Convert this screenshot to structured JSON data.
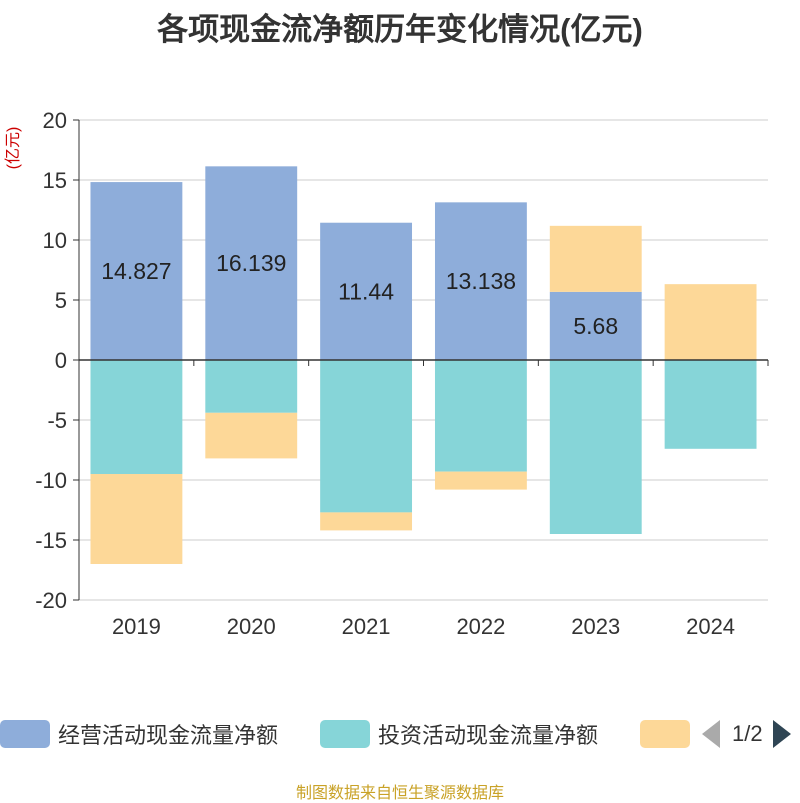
{
  "colors": {
    "operating": "#8eadda",
    "investing": "#86d5d8",
    "financing": "#fdd898",
    "axis": "#333333",
    "grid": "#cccccc",
    "unit": "#cc0000",
    "pager_active": "#2f4554",
    "pager_inactive": "#aaaaaa",
    "source": "#c9a227"
  },
  "legend": {
    "items": [
      {
        "label": "经营活动现金流量净额"
      },
      {
        "label": "投资活动现金流量净额"
      },
      {
        "label": ""
      }
    ],
    "pager_text": "1/2"
  },
  "source_note": "制图数据来自恒生聚源数据库",
  "chart_data": {
    "type": "bar",
    "stacked": true,
    "title": "各项现金流净额历年变化情况(亿元)",
    "ylabel": "(亿元)",
    "xlabel": "",
    "categories": [
      "2019",
      "2020",
      "2021",
      "2022",
      "2023",
      "2024"
    ],
    "ylim": [
      -20,
      20
    ],
    "yticks": [
      20,
      15,
      10,
      5,
      0,
      -5,
      -10,
      -15,
      -20
    ],
    "grid": true,
    "legend_position": "bottom",
    "series": [
      {
        "name": "经营活动现金流量净额",
        "color_key": "operating",
        "values": [
          14.827,
          16.139,
          11.44,
          13.138,
          5.68,
          0.02
        ],
        "data_labels": [
          "14.827",
          "16.139",
          "11.44",
          "13.138",
          "5.68",
          ""
        ]
      },
      {
        "name": "投资活动现金流量净额",
        "color_key": "investing",
        "values": [
          -9.5,
          -4.4,
          -12.7,
          -9.3,
          -14.5,
          -7.4
        ]
      },
      {
        "color_key": "financing",
        "values": [
          -7.5,
          -3.8,
          -1.5,
          -1.5,
          5.5,
          6.3
        ]
      }
    ]
  }
}
